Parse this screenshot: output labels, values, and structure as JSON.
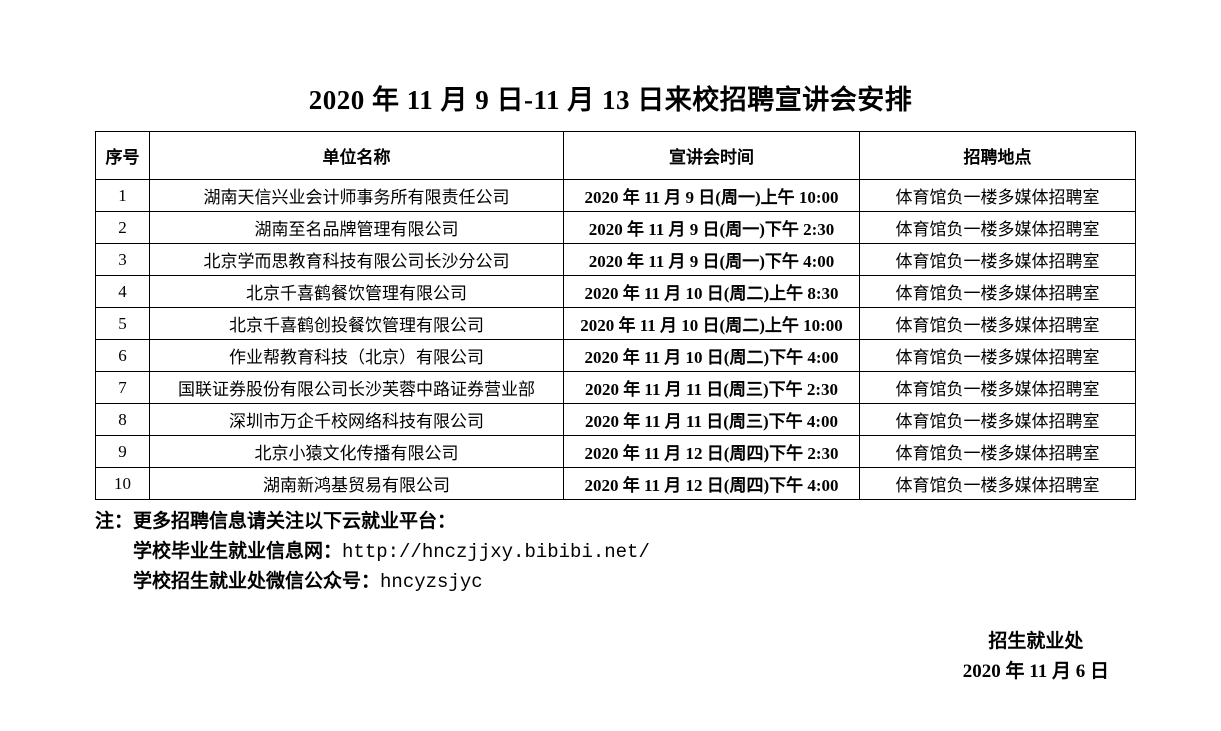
{
  "page": {
    "title": "2020 年 11 月 9 日-11 月 13 日来校招聘宣讲会安排"
  },
  "table": {
    "headers": {
      "no": "序号",
      "company": "单位名称",
      "time": "宣讲会时间",
      "location": "招聘地点"
    },
    "rows": [
      {
        "no": "1",
        "company": "湖南天信兴业会计师事务所有限责任公司",
        "time": "2020 年 11 月 9 日(周一)上午 10:00",
        "location": "体育馆负一楼多媒体招聘室"
      },
      {
        "no": "2",
        "company": "湖南至名品牌管理有限公司",
        "time": "2020 年 11 月 9 日(周一)下午 2:30",
        "location": "体育馆负一楼多媒体招聘室"
      },
      {
        "no": "3",
        "company": "北京学而思教育科技有限公司长沙分公司",
        "time": "2020 年 11 月 9 日(周一)下午 4:00",
        "location": "体育馆负一楼多媒体招聘室"
      },
      {
        "no": "4",
        "company": "北京千喜鹤餐饮管理有限公司",
        "time": "2020 年 11 月 10 日(周二)上午 8:30",
        "location": "体育馆负一楼多媒体招聘室"
      },
      {
        "no": "5",
        "company": "北京千喜鹤创投餐饮管理有限公司",
        "time": "2020 年 11 月 10 日(周二)上午 10:00",
        "location": "体育馆负一楼多媒体招聘室"
      },
      {
        "no": "6",
        "company": "作业帮教育科技（北京）有限公司",
        "time": "2020 年 11 月 10 日(周二)下午 4:00",
        "location": "体育馆负一楼多媒体招聘室"
      },
      {
        "no": "7",
        "company": "国联证券股份有限公司长沙芙蓉中路证券营业部",
        "time": "2020 年 11 月 11 日(周三)下午 2:30",
        "location": "体育馆负一楼多媒体招聘室"
      },
      {
        "no": "8",
        "company": "深圳市万企千校网络科技有限公司",
        "time": "2020 年 11 月 11 日(周三)下午 4:00",
        "location": "体育馆负一楼多媒体招聘室"
      },
      {
        "no": "9",
        "company": "北京小猿文化传播有限公司",
        "time": "2020 年 11 月 12 日(周四)下午 2:30",
        "location": "体育馆负一楼多媒体招聘室"
      },
      {
        "no": "10",
        "company": "湖南新鸿基贸易有限公司",
        "time": "2020 年 11 月 12 日(周四)下午 4:00",
        "location": "体育馆负一楼多媒体招聘室"
      }
    ]
  },
  "notes": {
    "line1": "注：更多招聘信息请关注以下云就业平台：",
    "line2_label": "学校毕业生就业信息网：",
    "line2_url": "http://hnczjjxy.bibibi.net/",
    "line3_label": "学校招生就业处微信公众号：",
    "line3_value": "hncyzsjyc"
  },
  "signature": {
    "department": "招生就业处",
    "date": "2020 年 11 月 6 日"
  }
}
